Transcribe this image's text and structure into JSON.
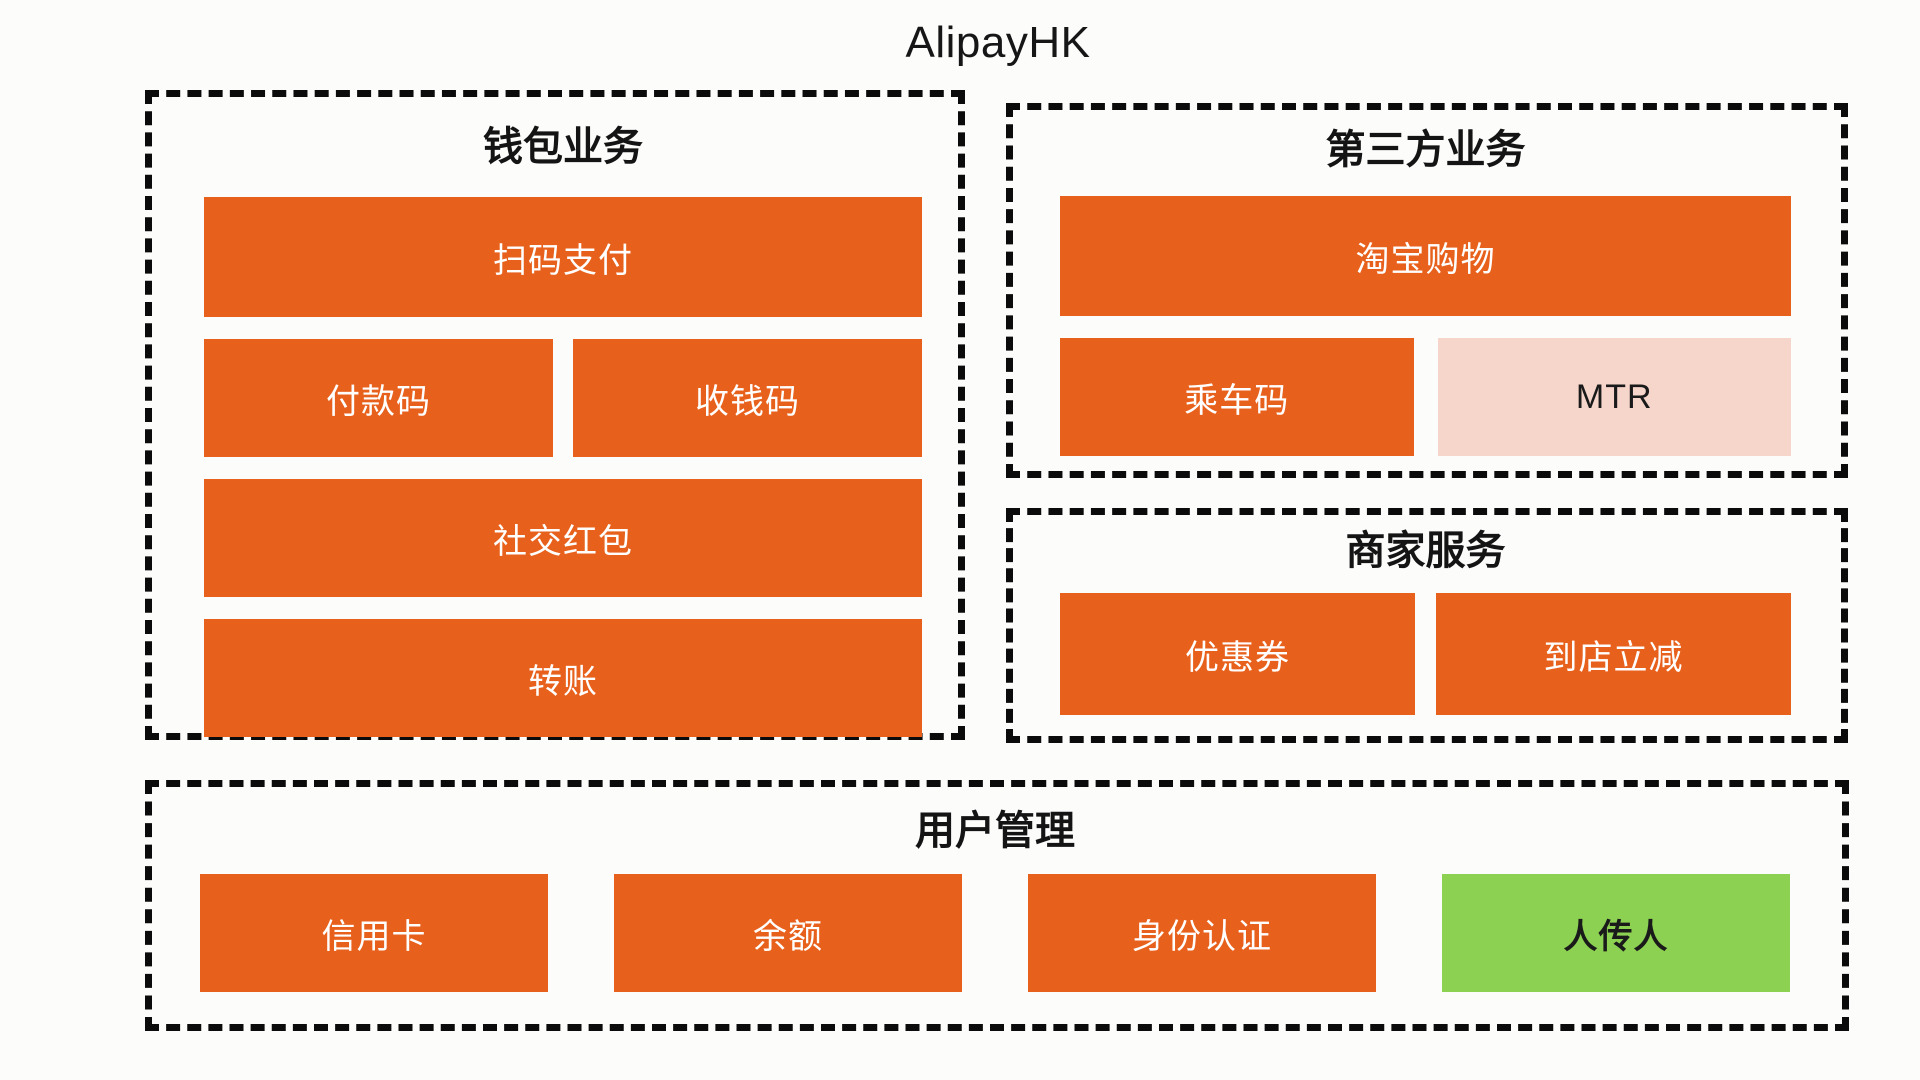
{
  "page_title": "AlipayHK",
  "colors": {
    "orange": "#E8611C",
    "pink": "#F6D5CA",
    "green": "#8CD152",
    "border": "#0B0B0B",
    "background": "#FCFCFB",
    "block_text_light": "#FFFFFF",
    "block_text_dark": "#1A1A1A"
  },
  "sections": {
    "wallet": {
      "title": "钱包业务",
      "items": [
        {
          "label": "扫码支付"
        },
        {
          "label": "付款码"
        },
        {
          "label": "收钱码"
        },
        {
          "label": "社交红包"
        },
        {
          "label": "转账"
        }
      ]
    },
    "third_party": {
      "title": "第三方业务",
      "items": [
        {
          "label": "淘宝购物"
        },
        {
          "label": "乘车码"
        },
        {
          "label": "MTR"
        }
      ]
    },
    "merchant": {
      "title": "商家服务",
      "items": [
        {
          "label": "优惠券"
        },
        {
          "label": "到店立减"
        }
      ]
    },
    "user_management": {
      "title": "用户管理",
      "items": [
        {
          "label": "信用卡"
        },
        {
          "label": "余额"
        },
        {
          "label": "身份认证"
        },
        {
          "label": "人传人"
        }
      ]
    }
  }
}
